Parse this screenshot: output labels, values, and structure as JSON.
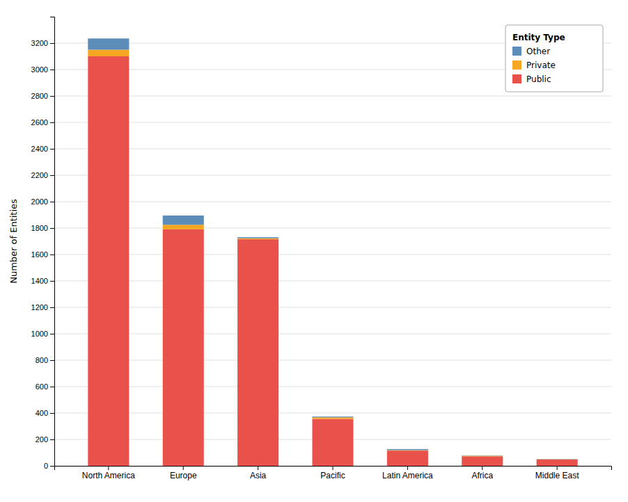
{
  "chart_data": {
    "type": "bar",
    "stacked": true,
    "ylabel": "Number of Entities",
    "legend_title": "Entity Type",
    "categories": [
      "North America",
      "Europe",
      "Asia",
      "Pacific",
      "Latin America",
      "Africa",
      "Middle East"
    ],
    "series": [
      {
        "name": "Public",
        "color": "#E8524A",
        "values": [
          3100,
          1790,
          1715,
          355,
          115,
          72,
          48
        ]
      },
      {
        "name": "Private",
        "color": "#F5A623",
        "values": [
          50,
          35,
          8,
          12,
          4,
          5,
          2
        ]
      },
      {
        "name": "Other",
        "color": "#5B8DB8",
        "values": [
          85,
          70,
          8,
          6,
          8,
          2,
          2
        ]
      }
    ],
    "ylim": [
      0,
      3400
    ],
    "yticks": [
      0,
      200,
      400,
      600,
      800,
      1000,
      1200,
      1400,
      1600,
      1800,
      2000,
      2200,
      2400,
      2600,
      2800,
      3000,
      3200
    ],
    "grid": true,
    "legend": "upper right"
  }
}
